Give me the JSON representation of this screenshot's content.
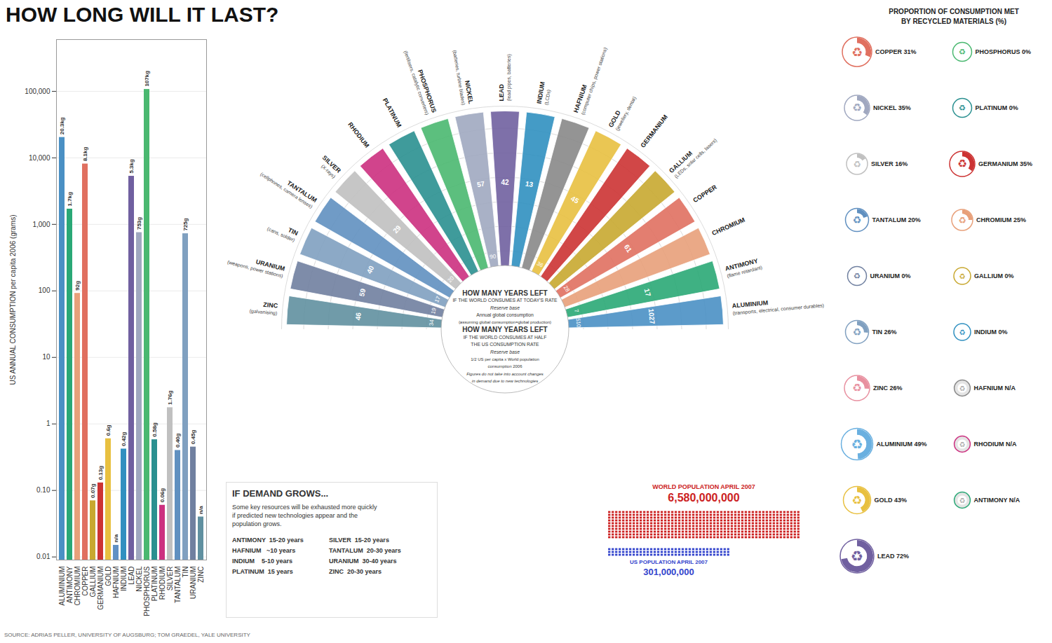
{
  "chart_data": [
    {
      "type": "bar",
      "title": "HOW LONG WILL IT LAST?",
      "y_label": "US ANNUAL CONSUMPTION per capita 2006 (grams)",
      "categories": [
        "ALUMINIUM",
        "ANTIMONY",
        "CHROMIUM",
        "COPPER",
        "GALLIUM",
        "GERMANIUM",
        "GOLD",
        "HAFNIUM",
        "INDIUM",
        "LEAD",
        "NICKEL",
        "PHOSPHORUS",
        "PLATINUM",
        "RHODIUM",
        "SILVER",
        "TANTALUM",
        "TIN",
        "URANIUM",
        "ZINC"
      ],
      "values": [
        20300,
        1700,
        92,
        8100,
        0.07,
        0.13,
        0.6,
        0.015,
        0.42,
        5300,
        753,
        107000,
        0.58,
        0.06,
        1.76,
        0.4,
        725,
        0.45,
        0.04
      ],
      "value_labels": [
        "20.3kg",
        "1.7kg",
        "92g",
        "8.1kg",
        "0.07g",
        "0.13g",
        "0.6g",
        "n/a",
        "0.42g",
        "5.3kg",
        "753g",
        "107kg",
        "0.58g",
        "0.06g",
        "1.76g",
        "0.40g",
        "725g",
        "0.45g",
        "n/a"
      ],
      "colors": [
        "#4a90c4",
        "#2aa876",
        "#e8a07a",
        "#e07060",
        "#c8a830",
        "#cc3333",
        "#e8c040",
        "#6090c4",
        "#3090c0",
        "#7060a0",
        "#a0a8c0",
        "#4ab870",
        "#2a9090",
        "#cc3080",
        "#c0c0c0",
        "#6090c0",
        "#80a0c0",
        "#7080a0",
        "#6090a0"
      ],
      "log": "y",
      "ylim": [
        0.009,
        600000
      ],
      "yticks": [
        0.01,
        {
          "value": 0.1,
          "label": "0.10"
        },
        1,
        10,
        100,
        {
          "value": 1000,
          "label": "1,000"
        },
        {
          "value": 10000,
          "label": "10,000"
        },
        {
          "value": 100000,
          "label": "100,000"
        }
      ],
      "grid": true,
      "data_labels": true,
      "source": "SOURCE: ADRIAS PELLER, UNIVERSITY OF AUGSBURG; TOM GRAEDEL, YALE UNIVERSITY"
    },
    {
      "type": "radial",
      "categories": [
        "ALUMINIUM",
        "ANTIMONY",
        "CHROMIUM",
        "COPPER",
        "GALLIUM",
        "GERMANIUM",
        "GOLD",
        "HAFNIUM",
        "INDIUM",
        "LEAD",
        "NICKEL",
        "PHOSPHORUS",
        "PLATINUM",
        "RHODIUM",
        "SILVER",
        "TANTALUM",
        "TIN",
        "URANIUM",
        "ZINC"
      ],
      "colors": [
        "#4a90c4",
        "#2aa876",
        "#e8a07a",
        "#e07060",
        "#c8a830",
        "#cc3333",
        "#e8c040",
        "#888888",
        "#3090c0",
        "#7060a0",
        "#a0a8c0",
        "#4ab870",
        "#2a9090",
        "#cc3080",
        "#c0c0c0",
        "#6090c0",
        "#80a0c0",
        "#7080a0",
        "#6090a0"
      ],
      "outer_values": [
        1027,
        17,
        null,
        61,
        null,
        null,
        45,
        null,
        13,
        42,
        57,
        null,
        null,
        null,
        29,
        null,
        40,
        59,
        46
      ],
      "inner_values": [
        510,
        7,
        null,
        28,
        null,
        null,
        36,
        null,
        null,
        null,
        90,
        null,
        null,
        null,
        20,
        null,
        17,
        19,
        34
      ],
      "usage_labels": [
        "(transports, electrical, consumer durables)",
        "(flame retardant)",
        null,
        null,
        "(LEDs, solar cells, lasers)",
        null,
        "(jewellery, dental)",
        "(computer chips, power stations)",
        "(LCDs)",
        "(lead pipes, batteries)",
        "(batteries, turbine blades)",
        "(fertilisers, catalytic converters)",
        null,
        null,
        "(X-rays)",
        "(cellphones, camera lenses)",
        "(cans, solder)",
        "(weapons, power stations)",
        "(galvanising)"
      ],
      "data_labels": true,
      "annotations": [
        "HOW MANY YEARS LEFT",
        "IF THE WORLD CONSUMES AT TODAY'S RATE",
        "Reserve base",
        "Annual global consumption",
        "(assuming global consumption=global production)",
        "HOW MANY YEARS LEFT",
        "IF THE WORLD CONSUMES AT HALF",
        "THE US CONSUMPTION RATE",
        "Reserve base",
        "1/2 US per capita  x World population",
        "consumption 2006",
        "Figures do not take into account changes",
        "in demand due to new technologies"
      ]
    },
    {
      "type": "pie",
      "title": "PROPORTION OF CONSUMPTION MET\nBY RECYCLED MATERIALS (%)",
      "categories": [
        "COPPER 31%",
        "NICKEL 35%",
        "SILVER 16%",
        "TANTALUM 20%",
        "URANIUM 0%",
        "TIN 26%",
        "ZINC 26%",
        "ALUMINIUM 49%",
        "GOLD 43%",
        "LEAD 72%",
        "PHOSPHORUS 0%",
        "PLATINUM 0%",
        "GERMANIUM 35%",
        "CHROMIUM 25%",
        "GALLIUM 0%",
        "INDIUM 0%",
        "HAFNIUM N/A",
        "RHODIUM N/A",
        "ANTIMONY N/A"
      ],
      "values": [
        31,
        35,
        16,
        20,
        0,
        26,
        26,
        49,
        43,
        72,
        0,
        0,
        35,
        25,
        0,
        0,
        null,
        null,
        null
      ],
      "colors": [
        "#e07060",
        "#a0a8c0",
        "#c0c0c0",
        "#6090c0",
        "#7080a0",
        "#80a0c0",
        "#e890a0",
        "#6ab0e0",
        "#e8c040",
        "#7060a0",
        "#4ab870",
        "#2a9090",
        "#cc3333",
        "#e8a07a",
        "#c8a830",
        "#3090c0",
        "#888888",
        "#cc3080",
        "#2aa876"
      ],
      "sizes": [
        70,
        60,
        50,
        55,
        45,
        55,
        60,
        75,
        65,
        80,
        45,
        45,
        60,
        50,
        40,
        40,
        38,
        38,
        38
      ],
      "symbol": "♻"
    },
    {
      "type": "text",
      "title": "IF DEMAND GROWS...",
      "body": "Some key resources will be exhausted more quickly\nif predicted new technologies appear and the\npopulation grows.",
      "table": [
        [
          "ANTIMONY  15-20 years",
          "SILVER  15-20 years"
        ],
        [
          "HAFNIUM   ~10 years",
          "TANTALUM  20-30 years"
        ],
        [
          "INDIUM    5-10 years",
          "URANIUM  30-40 years"
        ],
        [
          "PLATINUM  15 years",
          "ZINC  20-30 years"
        ]
      ]
    },
    {
      "type": "waffle",
      "series": [
        {
          "name": "WORLD POPULATION APRIL 2007",
          "color": "#cc2222",
          "label": "6,580,000,000",
          "columns": 55,
          "rows": 10
        },
        {
          "name": "US POPULATION APRIL 2007",
          "color": "#3344cc",
          "label": "301,000,000",
          "columns": 35,
          "rows": 3
        }
      ]
    }
  ]
}
